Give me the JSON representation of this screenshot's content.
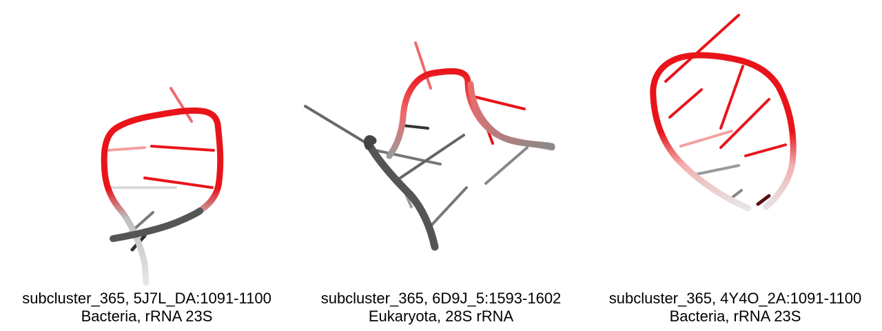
{
  "panels": [
    {
      "id": "5J7L_DA",
      "title": "subcluster_365, 5J7L_DA:1091-1100",
      "subtitle": "Bacteria, rRNA 23S"
    },
    {
      "id": "6D9J_5",
      "title": "subcluster_365, 6D9J_5:1593-1602",
      "subtitle": "Eukaryota, 28S rRNA"
    },
    {
      "id": "4Y4O_2A",
      "title": "subcluster_365, 4Y4O_2A:1091-1100",
      "subtitle": "Bacteria, rRNA 23S"
    }
  ],
  "colors": {
    "highlight": "#e8141a",
    "highlight_light": "#f06a6a",
    "backbone_dark": "#555555",
    "backbone_mid": "#8a8a8a",
    "backbone_light": "#d6d6d6",
    "background": "#ffffff"
  }
}
